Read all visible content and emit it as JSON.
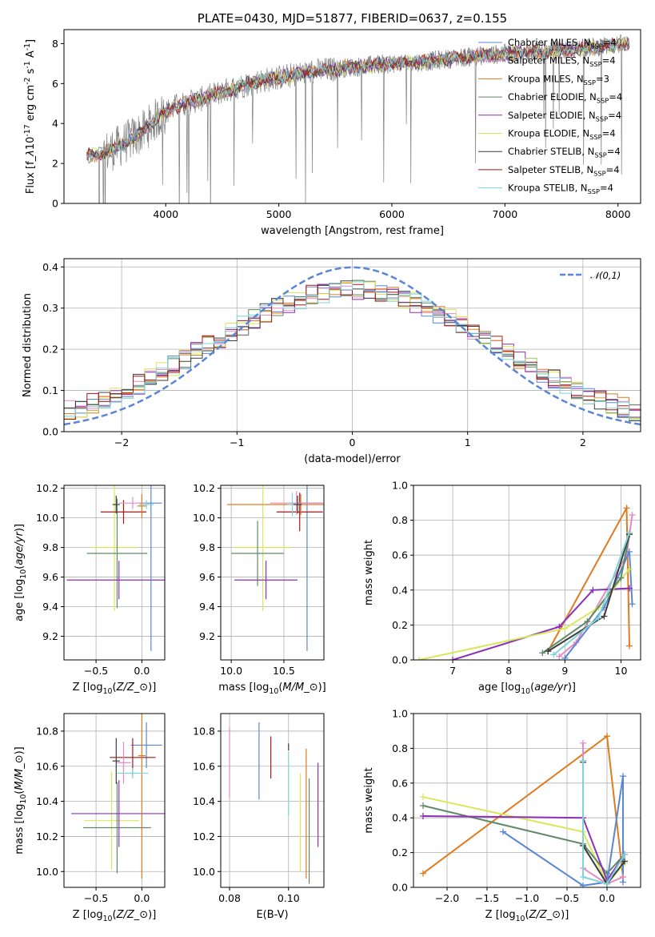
{
  "chart_data": [
    {
      "id": "spectrum",
      "type": "line",
      "title": "PLATE=0430, MJD=51877, FIBERID=0637, z=0.155",
      "xlabel": "wavelength [Angstrom, rest frame]",
      "ylabel": "Flux [f$_\\lambda$10$^{-17}$ erg cm$^{-2}$ s$^{-1}$ A$^{-1}$]",
      "xlim": [
        3100,
        8200
      ],
      "ylim": [
        0,
        8.7
      ],
      "xticks": [
        4000,
        5000,
        6000,
        7000,
        8000
      ],
      "yticks": [
        0,
        2,
        4,
        6,
        8
      ],
      "grid": false,
      "legend_position": "right",
      "data_color": "#808080",
      "data_anchors_x": [
        3300,
        3450,
        3600,
        3800,
        3950,
        4100,
        4300,
        4500,
        4800,
        5000,
        5300,
        5600,
        6000,
        6300,
        6600,
        7000,
        7300,
        7600,
        7900,
        8100
      ],
      "data_anchors_y": [
        2.4,
        2.5,
        2.9,
        3.6,
        4.4,
        4.9,
        5.2,
        5.6,
        6.1,
        6.3,
        6.6,
        6.8,
        7.0,
        7.1,
        7.3,
        7.5,
        7.6,
        7.7,
        7.9,
        8.0
      ],
      "series": [
        {
          "label": "Chabrier MILES, N$_{SSP}$=4",
          "color": "#5b86d6"
        },
        {
          "label": "Salpeter MILES, N$_{SSP}$=4",
          "color": "#e78ac3"
        },
        {
          "label": "Kroupa MILES, N$_{SSP}$=3",
          "color": "#e07b1f"
        },
        {
          "label": "Chabrier ELODIE, N$_{SSP}$=4",
          "color": "#5f8a68"
        },
        {
          "label": "Salpeter ELODIE, N$_{SSP}$=4",
          "color": "#8e2fb8"
        },
        {
          "label": "Kroupa ELODIE, N$_{SSP}$=4",
          "color": "#d8e85a"
        },
        {
          "label": "Chabrier STELIB, N$_{SSP}$=4",
          "color": "#3d3d3d"
        },
        {
          "label": "Salpeter STELIB, N$_{SSP}$=4",
          "color": "#a31818"
        },
        {
          "label": "Kroupa STELIB, N$_{SSP}$=4",
          "color": "#7ed4d6"
        }
      ]
    },
    {
      "id": "residuals",
      "type": "line",
      "xlabel": "(data-model)/error",
      "ylabel": "Normed distribution",
      "xlim": [
        -2.5,
        2.5
      ],
      "ylim": [
        0,
        0.42
      ],
      "xticks": [
        -2,
        -1,
        0,
        1,
        2
      ],
      "yticks": [
        0.0,
        0.1,
        0.2,
        0.3,
        0.4
      ],
      "grid": true,
      "legend_position": "top-right",
      "gaussian": {
        "label": "$\\mathcal{N}(0,1)$",
        "color": "#5b86d6",
        "mean": 0,
        "sigma": 1
      },
      "hist_bin_width": 0.1,
      "hist_bin_start": -2.5
    },
    {
      "id": "Z-age",
      "type": "scatter",
      "xlabel": "Z [log$_{10}$($Z/Z_\\odot$)]",
      "ylabel": "age  [log$_{10}$($age/yr$)]",
      "xlim": [
        -0.85,
        0.25
      ],
      "ylim": [
        9.04,
        10.22
      ],
      "xticks": [
        -0.5,
        0.0
      ],
      "yticks": [
        9.2,
        9.4,
        9.6,
        9.8,
        10.0,
        10.2
      ],
      "grid": true,
      "points": [
        {
          "x": -0.3,
          "y": 9.8,
          "xerr": 0.25,
          "yerr": 0.43,
          "color": "#d8e85a"
        },
        {
          "x": -0.27,
          "y": 9.76,
          "xerr": 0.33,
          "yerr": 0.37,
          "color": "#5f8a68"
        },
        {
          "x": -0.25,
          "y": 9.58,
          "xerr": 0.57,
          "yerr": 0.13,
          "color": "#8e2fb8"
        },
        {
          "x": 0.1,
          "y": 10.1,
          "xerr": 0.12,
          "yerr": 1.0,
          "color": "#5b86d6"
        },
        {
          "x": -0.2,
          "y": 10.04,
          "xerr": 0.25,
          "yerr": 0.08,
          "color": "#a31818"
        },
        {
          "x": -0.1,
          "y": 10.1,
          "xerr": 0.15,
          "yerr": 0.04,
          "color": "#e78ac3"
        },
        {
          "x": 0.0,
          "y": 10.08,
          "xerr": 0.05,
          "yerr": 0.08,
          "color": "#e07b1f"
        },
        {
          "x": 0.05,
          "y": 10.09,
          "xerr": 0.08,
          "yerr": 0.03,
          "color": "#7ed4d6"
        },
        {
          "x": -0.28,
          "y": 10.09,
          "xerr": 0.04,
          "yerr": 0.06,
          "color": "#3d3d3d"
        }
      ]
    },
    {
      "id": "mass-age",
      "type": "scatter",
      "xlabel": "mass [log$_{10}$($M/M_\\odot$)]",
      "ylabel": "",
      "xlim": [
        9.9,
        10.88
      ],
      "ylim": [
        9.04,
        10.22
      ],
      "xticks": [
        10.0,
        10.5
      ],
      "yticks": [
        9.2,
        9.4,
        9.6,
        9.8,
        10.0,
        10.2
      ],
      "grid": true,
      "points": [
        {
          "x": 10.3,
          "y": 9.8,
          "xerr": 0.27,
          "yerr": 0.43,
          "color": "#d8e85a"
        },
        {
          "x": 10.25,
          "y": 9.76,
          "xerr": 0.25,
          "yerr": 0.22,
          "color": "#5f8a68"
        },
        {
          "x": 10.33,
          "y": 9.58,
          "xerr": 0.3,
          "yerr": 0.13,
          "color": "#8e2fb8"
        },
        {
          "x": 10.72,
          "y": 10.1,
          "xerr": 0.15,
          "yerr": 1.0,
          "color": "#5b86d6"
        },
        {
          "x": 10.65,
          "y": 10.04,
          "xerr": 0.22,
          "yerr": 0.13,
          "color": "#a31818"
        },
        {
          "x": 10.62,
          "y": 10.1,
          "xerr": 0.25,
          "yerr": 0.08,
          "color": "#e78ac3"
        },
        {
          "x": 10.66,
          "y": 10.09,
          "xerr": 0.7,
          "yerr": 0.07,
          "color": "#e07b1f"
        },
        {
          "x": 10.58,
          "y": 10.09,
          "xerr": 0.05,
          "yerr": 0.08,
          "color": "#7ed4d6"
        },
        {
          "x": 10.63,
          "y": 10.09,
          "xerr": 0.04,
          "yerr": 0.06,
          "color": "#3d3d3d"
        }
      ]
    },
    {
      "id": "age-weight",
      "type": "line",
      "xlabel": "age  [log$_{10}$($age/yr$)]",
      "ylabel": "mass weight",
      "xlim": [
        6.3,
        10.35
      ],
      "ylim": [
        0,
        1.0
      ],
      "xticks": [
        7,
        8,
        9,
        10
      ],
      "yticks": [
        0.0,
        0.2,
        0.4,
        0.6,
        0.8,
        1.0
      ],
      "grid": true,
      "series": [
        {
          "color": "#e07b1f",
          "x": [
            8.7,
            10.1,
            10.15
          ],
          "y": [
            0.05,
            0.87,
            0.08
          ]
        },
        {
          "color": "#e78ac3",
          "x": [
            8.9,
            9.2,
            10.1,
            10.2
          ],
          "y": [
            0.02,
            0.1,
            0.6,
            0.83
          ]
        },
        {
          "color": "#5b86d6",
          "x": [
            9.0,
            9.7,
            10.15,
            10.2
          ],
          "y": [
            0.01,
            0.3,
            0.62,
            0.32
          ]
        },
        {
          "color": "#8e2fb8",
          "x": [
            7.0,
            8.9,
            9.5,
            10.15
          ],
          "y": [
            0.0,
            0.19,
            0.4,
            0.41
          ]
        },
        {
          "color": "#d8e85a",
          "x": [
            6.4,
            9.0,
            9.6,
            10.15
          ],
          "y": [
            0.0,
            0.18,
            0.3,
            0.52
          ]
        },
        {
          "color": "#5f8a68",
          "x": [
            8.6,
            9.4,
            10.0,
            10.15
          ],
          "y": [
            0.04,
            0.22,
            0.47,
            0.72
          ]
        },
        {
          "color": "#3d3d3d",
          "x": [
            8.7,
            9.7,
            10.15
          ],
          "y": [
            0.05,
            0.25,
            0.72
          ]
        },
        {
          "color": "#7ed4d6",
          "x": [
            8.8,
            9.6,
            10.15
          ],
          "y": [
            0.03,
            0.24,
            0.73
          ]
        }
      ]
    },
    {
      "id": "Z-mass",
      "type": "scatter",
      "xlabel": "Z [log$_{10}$($Z/Z_\\odot$)]",
      "ylabel": "mass [log$_{10}$($M/M_\\odot$)]",
      "xlim": [
        -0.85,
        0.25
      ],
      "ylim": [
        9.91,
        10.9
      ],
      "xticks": [
        -0.5,
        0.0
      ],
      "yticks": [
        10.0,
        10.2,
        10.4,
        10.6,
        10.8
      ],
      "grid": true,
      "points": [
        {
          "x": -0.33,
          "y": 10.29,
          "xerr": 0.3,
          "yerr": 0.28,
          "color": "#d8e85a"
        },
        {
          "x": -0.27,
          "y": 10.25,
          "xerr": 0.37,
          "yerr": 0.26,
          "color": "#5f8a68"
        },
        {
          "x": -0.25,
          "y": 10.33,
          "xerr": 0.52,
          "yerr": 0.19,
          "color": "#8e2fb8"
        },
        {
          "x": 0.05,
          "y": 10.72,
          "xerr": 0.17,
          "yerr": 0.13,
          "color": "#5b86d6"
        },
        {
          "x": -0.1,
          "y": 10.65,
          "xerr": 0.25,
          "yerr": 0.11,
          "color": "#a31818"
        },
        {
          "x": -0.2,
          "y": 10.62,
          "xerr": 0.08,
          "yerr": 0.12,
          "color": "#e78ac3"
        },
        {
          "x": 0.0,
          "y": 10.66,
          "xerr": 0.04,
          "yerr": 0.7,
          "color": "#e07b1f"
        },
        {
          "x": -0.1,
          "y": 10.56,
          "xerr": 0.17,
          "yerr": 0.03,
          "color": "#7ed4d6"
        },
        {
          "x": -0.28,
          "y": 10.63,
          "xerr": 0.04,
          "yerr": 0.13,
          "color": "#3d3d3d"
        }
      ]
    },
    {
      "id": "ebv-mass",
      "type": "scatter",
      "xlabel": "E(B-V)",
      "ylabel": "",
      "xlim": [
        0.077,
        0.112
      ],
      "ylim": [
        9.91,
        10.9
      ],
      "xticks": [
        0.08,
        0.1
      ],
      "yticks": [
        10.0,
        10.2,
        10.4,
        10.6,
        10.8
      ],
      "grid": true,
      "points": [
        {
          "x": 0.08,
          "y": 10.62,
          "xerr": 0,
          "yerr": 0.2,
          "color": "#e78ac3"
        },
        {
          "x": 0.09,
          "y": 10.63,
          "xerr": 0,
          "yerr": 0.22,
          "color": "#5b86d6"
        },
        {
          "x": 0.094,
          "y": 10.65,
          "xerr": 0,
          "yerr": 0.12,
          "color": "#a31818"
        },
        {
          "x": 0.1,
          "y": 10.5,
          "xerr": 0,
          "yerr": 0.18,
          "color": "#7ed4d6"
        },
        {
          "x": 0.1,
          "y": 10.71,
          "xerr": 0,
          "yerr": 0.02,
          "color": "#3d3d3d"
        },
        {
          "x": 0.104,
          "y": 10.28,
          "xerr": 0,
          "yerr": 0.28,
          "color": "#d8e85a"
        },
        {
          "x": 0.106,
          "y": 10.33,
          "xerr": 0,
          "yerr": 0.37,
          "color": "#e07b1f"
        },
        {
          "x": 0.107,
          "y": 10.23,
          "xerr": 0,
          "yerr": 0.3,
          "color": "#5f8a68"
        },
        {
          "x": 0.11,
          "y": 10.38,
          "xerr": 0,
          "yerr": 0.24,
          "color": "#8e2fb8"
        }
      ]
    },
    {
      "id": "Z-weight",
      "type": "line",
      "xlabel": "Z [log$_{10}$($Z/Z_\\odot$)]",
      "ylabel": "mass weight",
      "xlim": [
        -2.42,
        0.42
      ],
      "ylim": [
        0,
        1.0
      ],
      "xticks": [
        -2.0,
        -1.5,
        -1.0,
        -0.5,
        0.0
      ],
      "yticks": [
        0.0,
        0.2,
        0.4,
        0.6,
        0.8,
        1.0
      ],
      "grid": true,
      "series": [
        {
          "color": "#e07b1f",
          "x": [
            -2.3,
            0.0,
            0.2
          ],
          "y": [
            0.08,
            0.87,
            0.06
          ]
        },
        {
          "color": "#d8e85a",
          "x": [
            -2.3,
            -0.3,
            0.0,
            0.22
          ],
          "y": [
            0.52,
            0.32,
            0.02,
            0.14
          ]
        },
        {
          "color": "#5f8a68",
          "x": [
            -2.3,
            -0.3,
            0.0,
            0.22
          ],
          "y": [
            0.47,
            0.25,
            0.08,
            0.19
          ]
        },
        {
          "color": "#8e2fb8",
          "x": [
            -2.3,
            -0.3,
            0.0,
            0.22
          ],
          "y": [
            0.41,
            0.4,
            0.04,
            0.19
          ]
        },
        {
          "color": "#5b86d6",
          "x": [
            -1.3,
            -0.3,
            0.0,
            0.2,
            0.2
          ],
          "y": [
            0.32,
            0.01,
            0.03,
            0.64,
            0.03
          ]
        },
        {
          "color": "#e78ac3",
          "x": [
            -0.3,
            -0.3,
            0.0,
            0.2
          ],
          "y": [
            0.83,
            0.11,
            0.02,
            0.06
          ]
        },
        {
          "color": "#3d3d3d",
          "x": [
            -0.3,
            -0.3,
            0.0,
            0.22
          ],
          "y": [
            0.72,
            0.24,
            0.02,
            0.15
          ]
        },
        {
          "color": "#7ed4d6",
          "x": [
            -0.3,
            -0.3,
            0.0,
            0.22
          ],
          "y": [
            0.73,
            0.06,
            0.02,
            0.19
          ]
        }
      ]
    }
  ]
}
